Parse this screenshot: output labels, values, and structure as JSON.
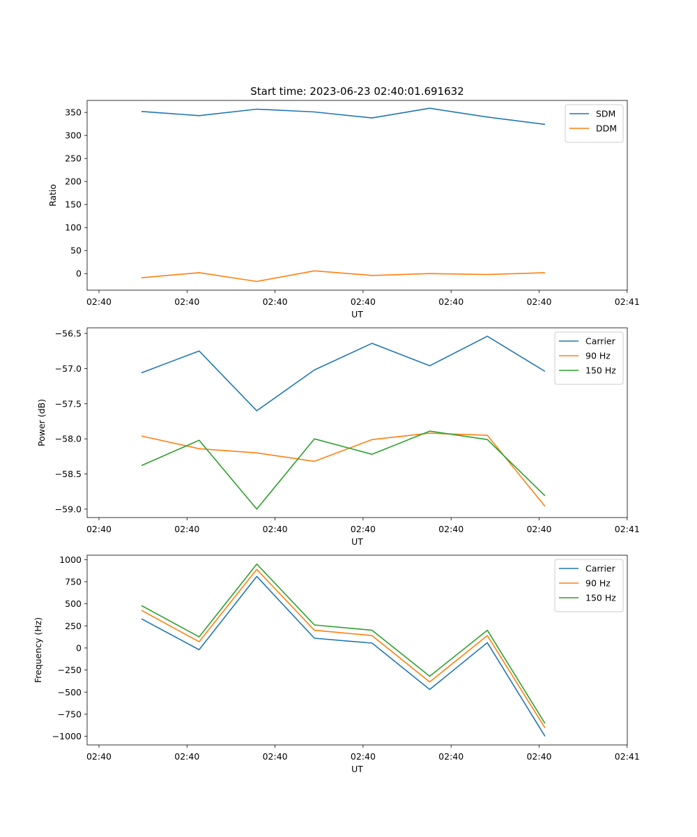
{
  "title": "Start time: 2023-06-23 02:40:01.691632",
  "chart_data": [
    {
      "type": "line",
      "xlabel": "UT",
      "ylabel": "Ratio",
      "x": [
        1,
        2,
        3,
        4,
        5,
        6,
        7,
        8
      ],
      "xtick_labels": [
        "02:40",
        "02:40",
        "02:40",
        "02:40",
        "02:40",
        "02:40",
        "02:40",
        "02:41"
      ],
      "yticks": [
        0,
        50,
        100,
        150,
        200,
        250,
        300,
        350
      ],
      "ylim": [
        -36,
        376
      ],
      "grid": false,
      "legend": "top-right",
      "series": [
        {
          "name": "SDM",
          "color": "#1f77b4",
          "values": [
            352,
            343,
            357,
            351,
            338,
            359,
            340,
            324
          ]
        },
        {
          "name": "DDM",
          "color": "#ff7f0e",
          "values": [
            -9,
            2,
            -17,
            6,
            -4,
            0,
            -2,
            2
          ]
        }
      ]
    },
    {
      "type": "line",
      "xlabel": "UT",
      "ylabel": "Power (dB)",
      "x": [
        1,
        2,
        3,
        4,
        5,
        6,
        7,
        8
      ],
      "xtick_labels": [
        "02:40",
        "02:40",
        "02:40",
        "02:40",
        "02:40",
        "02:40",
        "02:40",
        "02:41"
      ],
      "yticks": [
        -59.0,
        -58.5,
        -58.0,
        -57.5,
        -57.0,
        -56.5
      ],
      "ytick_labels": [
        "−59.0",
        "−58.5",
        "−58.0",
        "−57.5",
        "−57.0",
        "−56.5"
      ],
      "ylim": [
        -59.12,
        -56.42
      ],
      "grid": false,
      "legend": "top-right",
      "series": [
        {
          "name": "Carrier",
          "color": "#1f77b4",
          "values": [
            -57.06,
            -56.75,
            -57.6,
            -57.02,
            -56.64,
            -56.96,
            -56.54,
            -57.04
          ]
        },
        {
          "name": "90 Hz",
          "color": "#ff7f0e",
          "values": [
            -57.96,
            -58.14,
            -58.2,
            -58.32,
            -58.01,
            -57.92,
            -57.95,
            -58.96
          ]
        },
        {
          "name": "150 Hz",
          "color": "#2ca02c",
          "values": [
            -58.38,
            -58.02,
            -59.0,
            -58.0,
            -58.22,
            -57.89,
            -58.01,
            -58.81
          ]
        }
      ]
    },
    {
      "type": "line",
      "xlabel": "UT",
      "ylabel": "Frequency (Hz)",
      "x": [
        1,
        2,
        3,
        4,
        5,
        6,
        7,
        8
      ],
      "xtick_labels": [
        "02:40",
        "02:40",
        "02:40",
        "02:40",
        "02:40",
        "02:40",
        "02:40",
        "02:41"
      ],
      "yticks": [
        -1000,
        -750,
        -500,
        -250,
        0,
        250,
        500,
        750,
        1000
      ],
      "ytick_labels": [
        "−1000",
        "−750",
        "−500",
        "−250",
        "0",
        "250",
        "500",
        "750",
        "1000"
      ],
      "ylim": [
        -1098,
        1050
      ],
      "grid": false,
      "legend": "top-right",
      "series": [
        {
          "name": "Carrier",
          "color": "#1f77b4",
          "values": [
            330,
            -20,
            810,
            110,
            55,
            -470,
            60,
            -1000
          ]
        },
        {
          "name": "90 Hz",
          "color": "#ff7f0e",
          "values": [
            425,
            70,
            890,
            200,
            140,
            -385,
            140,
            -905
          ]
        },
        {
          "name": "150 Hz",
          "color": "#2ca02c",
          "values": [
            480,
            125,
            950,
            260,
            200,
            -320,
            200,
            -855
          ]
        }
      ]
    }
  ]
}
